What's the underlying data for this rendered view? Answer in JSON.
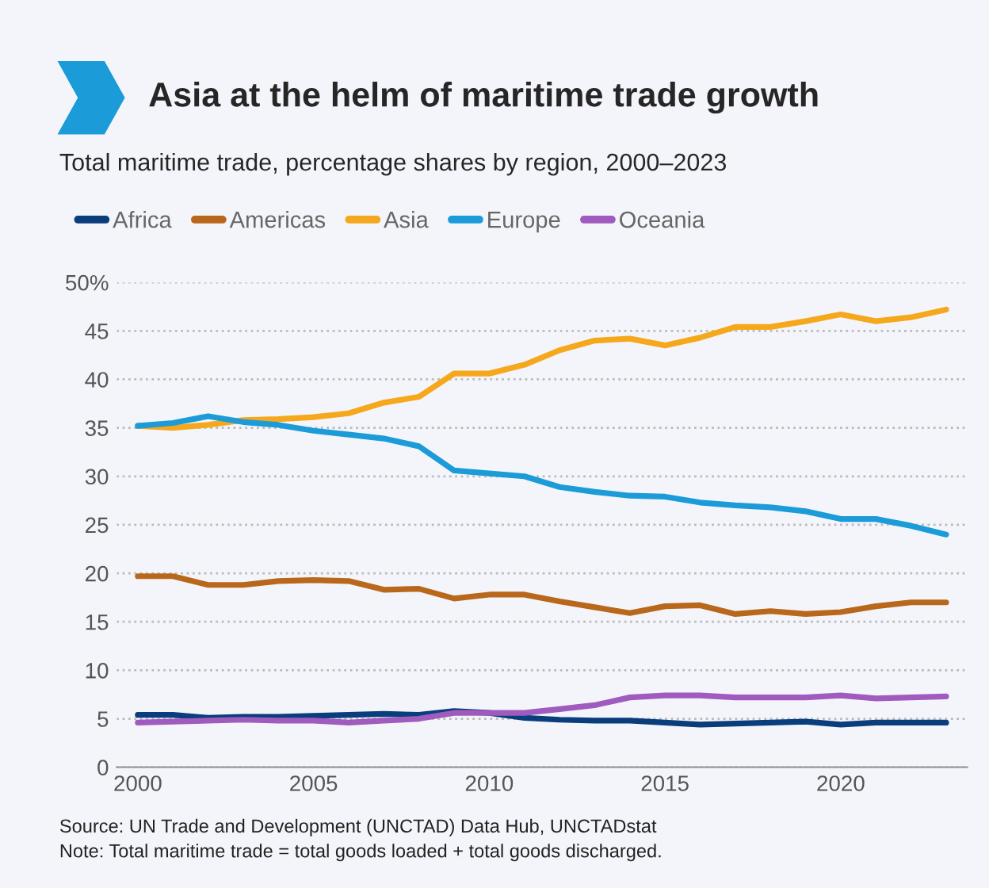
{
  "chart_data": {
    "type": "line",
    "title": "Asia at the helm of maritime trade growth",
    "subtitle": "Total maritime trade, percentage shares by region, 2000–2023",
    "x": [
      2000,
      2001,
      2002,
      2003,
      2004,
      2005,
      2006,
      2007,
      2008,
      2009,
      2010,
      2011,
      2012,
      2013,
      2014,
      2015,
      2016,
      2017,
      2018,
      2019,
      2020,
      2021,
      2022,
      2023
    ],
    "series": [
      {
        "name": "Africa",
        "color": "#0a3d7c",
        "values": [
          5.4,
          5.4,
          5.1,
          5.2,
          5.2,
          5.3,
          5.4,
          5.5,
          5.4,
          5.8,
          5.6,
          5.1,
          4.9,
          4.8,
          4.8,
          4.6,
          4.4,
          4.5,
          4.6,
          4.7,
          4.4,
          4.6,
          4.6,
          4.6
        ]
      },
      {
        "name": "Americas",
        "color": "#b8671b",
        "values": [
          19.7,
          19.7,
          18.8,
          18.8,
          19.2,
          19.3,
          19.2,
          18.3,
          18.4,
          17.4,
          17.8,
          17.8,
          17.1,
          16.5,
          15.9,
          16.6,
          16.7,
          15.8,
          16.1,
          15.8,
          16.0,
          16.6,
          17.0,
          17.0
        ]
      },
      {
        "name": "Asia",
        "color": "#f5a81c",
        "values": [
          35.2,
          35.0,
          35.3,
          35.8,
          35.9,
          36.1,
          36.5,
          37.6,
          38.2,
          40.6,
          40.6,
          41.5,
          43.0,
          44.0,
          44.2,
          43.5,
          44.3,
          45.4,
          45.4,
          46.0,
          46.7,
          46.0,
          46.4,
          47.2
        ]
      },
      {
        "name": "Europe",
        "color": "#1b9bd8",
        "values": [
          35.2,
          35.5,
          36.2,
          35.6,
          35.3,
          34.7,
          34.3,
          33.9,
          33.1,
          30.6,
          30.3,
          30.0,
          28.9,
          28.4,
          28.0,
          27.9,
          27.3,
          27.0,
          26.8,
          26.4,
          25.6,
          25.6,
          24.9,
          24.0
        ]
      },
      {
        "name": "Oceania",
        "color": "#a05bbf",
        "values": [
          4.6,
          4.7,
          4.8,
          4.9,
          4.8,
          4.8,
          4.6,
          4.8,
          5.0,
          5.6,
          5.6,
          5.6,
          6.0,
          6.4,
          7.2,
          7.4,
          7.4,
          7.2,
          7.2,
          7.2,
          7.4,
          7.1,
          7.2,
          7.3
        ]
      }
    ],
    "xlim": [
      1999.4,
      2023.6
    ],
    "xticks": [
      2000,
      2005,
      2010,
      2015,
      2020
    ],
    "ylim": [
      0,
      50
    ],
    "yticks": [
      0,
      5,
      10,
      15,
      20,
      25,
      30,
      35,
      40,
      45,
      {
        "value": 50,
        "label": "50%"
      }
    ],
    "grid": "y",
    "legend": "top left",
    "marker": "none",
    "line_style": "solid",
    "annotations": [
      "Source: UN Trade and Development (UNCTAD) Data Hub, UNCTADstat",
      "Note: Total maritime trade = total goods loaded + total goods discharged."
    ]
  }
}
